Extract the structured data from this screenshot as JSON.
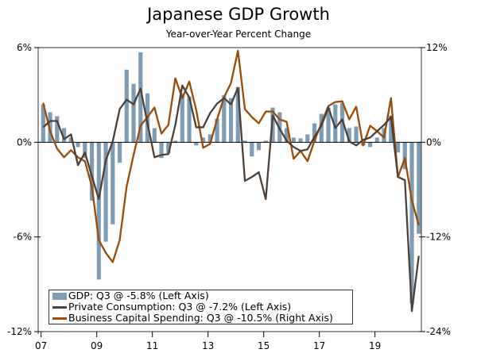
{
  "chart_data": {
    "type": "bar+line",
    "title": "Japanese GDP Growth",
    "subtitle": "Year-over-Year Percent Change",
    "x_start": "2007 Q1",
    "x_end": "2020 Q3",
    "x_tick_labels": [
      "07",
      "09",
      "11",
      "13",
      "15",
      "17",
      "19"
    ],
    "left_axis": {
      "ticks": [
        "6%",
        "0%",
        "-6%",
        "-12%"
      ],
      "values": [
        6,
        0,
        -6,
        -12
      ],
      "ylim": [
        -12,
        6
      ]
    },
    "right_axis": {
      "ticks": [
        "12%",
        "0%",
        "-12%",
        "-24%"
      ],
      "values": [
        12,
        0,
        -12,
        -24
      ],
      "ylim": [
        -24,
        12
      ]
    },
    "colors": {
      "gdp": "#7f9cb5",
      "consumption": "#4d4037",
      "capex": "#9c4a05"
    },
    "series": [
      {
        "name": "GDP: Q3 @ -5.8% (Left Axis)",
        "type": "bar",
        "axis": "left",
        "values": [
          2.4,
          1.9,
          1.65,
          0.9,
          0.3,
          -0.3,
          -1.0,
          -3.7,
          -8.7,
          -6.3,
          -5.2,
          -1.3,
          4.6,
          3.7,
          5.7,
          3.1,
          0.9,
          -1.0,
          -0.7,
          0.1,
          3.1,
          2.9,
          -0.2,
          0.3,
          0.5,
          1.5,
          3.0,
          2.8,
          3.5,
          0.1,
          -0.9,
          -0.5,
          0.1,
          2.2,
          1.9,
          0.9,
          0.3,
          0.25,
          0.5,
          1.2,
          1.8,
          2.2,
          2.4,
          2.5,
          0.9,
          1.0,
          -0.2,
          -0.3,
          0.3,
          0.9,
          1.7,
          -0.65,
          -1.7,
          -10.2,
          -5.8
        ]
      },
      {
        "name": "Private Consumption: Q3 @ -7.2% (Left Axis)",
        "type": "line",
        "axis": "left",
        "values": [
          0.95,
          1.35,
          1.35,
          0.2,
          0.5,
          -1.45,
          -0.65,
          -2.15,
          -3.6,
          -1.15,
          0.05,
          2.1,
          2.7,
          2.4,
          3.4,
          1.2,
          -0.95,
          -0.8,
          -0.75,
          1.1,
          3.6,
          2.85,
          0.95,
          0.95,
          1.85,
          2.45,
          2.8,
          2.4,
          3.45,
          -2.45,
          -2.2,
          -1.9,
          -3.6,
          1.7,
          0.85,
          0.1,
          -0.3,
          -0.55,
          -0.45,
          0.35,
          1.05,
          2.2,
          0.9,
          1.45,
          0.05,
          -0.2,
          0.15,
          0.3,
          0.7,
          1.1,
          1.6,
          -2.2,
          -2.4,
          -10.7,
          -7.2
        ]
      },
      {
        "name": "Business Capital Spending: Q3 @ -10.5% (Right Axis)",
        "type": "line",
        "axis": "right",
        "values": [
          5.0,
          1.4,
          -0.8,
          -1.9,
          -1.0,
          -1.9,
          -2.4,
          -5.6,
          -12.4,
          -14.0,
          -15.2,
          -12.4,
          -5.6,
          -1.6,
          2.1,
          3.2,
          4.4,
          1.1,
          2.2,
          8.1,
          5.6,
          7.7,
          4.1,
          -0.7,
          -0.2,
          2.9,
          5.7,
          7.5,
          11.6,
          4.2,
          3.2,
          2.4,
          3.9,
          3.9,
          2.9,
          2.6,
          -2.1,
          -1.1,
          -2.4,
          0.2,
          2.4,
          4.6,
          5.1,
          5.2,
          2.9,
          4.5,
          -0.4,
          2.1,
          1.4,
          0.6,
          5.6,
          -4.4,
          -2.0,
          -7.4,
          -10.5
        ]
      }
    ],
    "legend_position": "bottom-left",
    "grid": false
  }
}
